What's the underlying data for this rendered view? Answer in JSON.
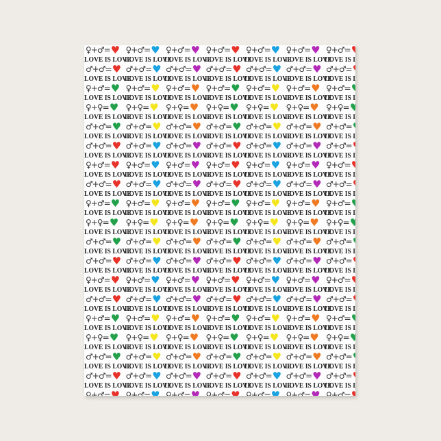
{
  "product": "jigsaw-puzzle",
  "pattern": {
    "text": "LOVE IS LOVE",
    "male": "♂",
    "female": "♀",
    "plus": "+",
    "equals": "=",
    "heart_groups": {
      "A": [
        "#e8332a",
        "#1aa3e0",
        "#b42ab8"
      ],
      "B": [
        "#22a04a",
        "#f5e51c",
        "#ef7a22"
      ]
    },
    "row_cycle": [
      {
        "pair": [
          "female",
          "male"
        ],
        "group": "A"
      },
      {
        "pair": [
          "male",
          "male"
        ],
        "group": "A"
      },
      {
        "pair": [
          "female",
          "male"
        ],
        "group": "B"
      },
      {
        "pair": [
          "female",
          "female"
        ],
        "group": "B"
      },
      {
        "pair": [
          "male",
          "male"
        ],
        "group": "B"
      },
      {
        "pair": [
          "male",
          "male"
        ],
        "group": "A"
      }
    ]
  }
}
